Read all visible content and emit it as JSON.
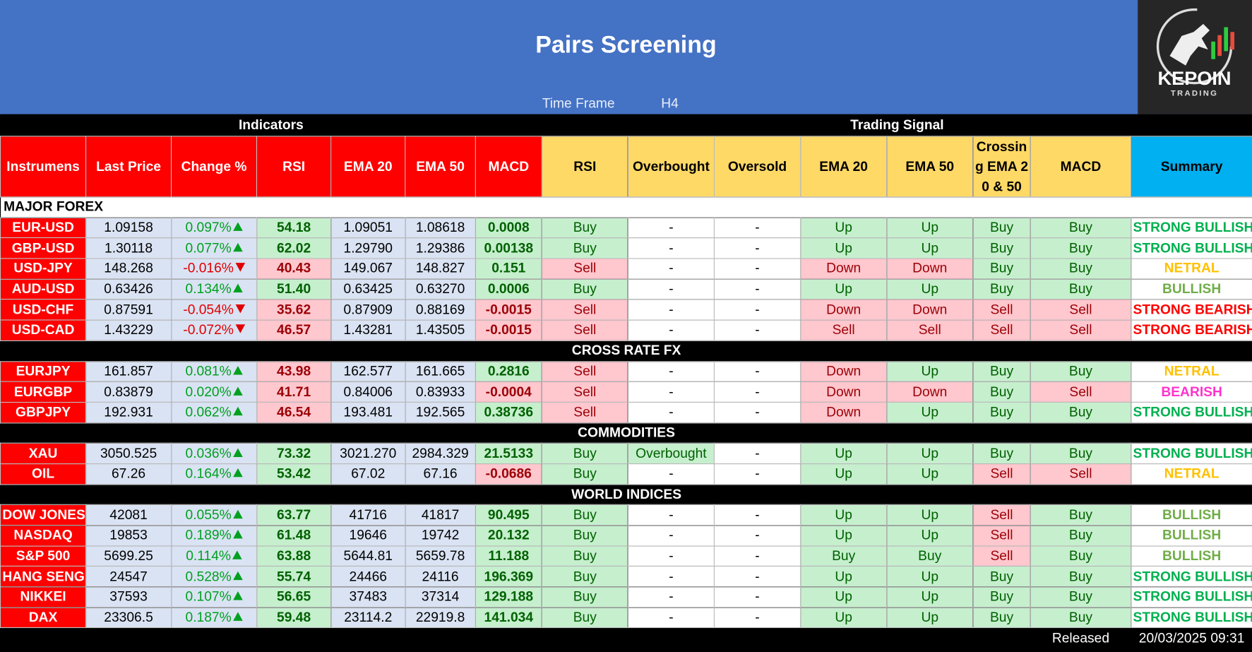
{
  "header": {
    "title": "Pairs Screening",
    "timeframe_label": "Time Frame",
    "timeframe_value": "H4"
  },
  "logo": {
    "name": "KEPOIN",
    "tagline": "TRADING"
  },
  "group_headers": [
    "Indicators",
    "Trading Signal"
  ],
  "columns": [
    "Instrumens",
    "Last Price",
    "Change %",
    "RSI",
    "EMA 20",
    "EMA 50",
    "MACD",
    "RSI",
    "Overbought",
    "Oversold",
    "EMA 20",
    "EMA 50",
    "Crossing EMA 20 & 50",
    "MACD",
    "Summary"
  ],
  "sections": [
    {
      "title": "MAJOR FOREX",
      "rows": [
        [
          "EUR-USD",
          "1.09158",
          "0.097%",
          "54.18",
          "1.09051",
          "1.08618",
          "0.0008",
          "Buy",
          "-",
          "-",
          "Up",
          "Up",
          "Buy",
          "Buy",
          "STRONG BULLISH"
        ],
        [
          "GBP-USD",
          "1.30118",
          "0.077%",
          "62.02",
          "1.29790",
          "1.29386",
          "0.00138",
          "Buy",
          "-",
          "-",
          "Up",
          "Up",
          "Buy",
          "Buy",
          "STRONG BULLISH"
        ],
        [
          "USD-JPY",
          "148.268",
          "-0.016%",
          "40.43",
          "149.067",
          "148.827",
          "0.151",
          "Sell",
          "-",
          "-",
          "Down",
          "Down",
          "Buy",
          "Buy",
          "NETRAL"
        ],
        [
          "AUD-USD",
          "0.63426",
          "0.134%",
          "51.40",
          "0.63425",
          "0.63270",
          "0.0006",
          "Buy",
          "-",
          "-",
          "Up",
          "Up",
          "Buy",
          "Buy",
          "BULLISH"
        ],
        [
          "USD-CHF",
          "0.87591",
          "-0.054%",
          "35.62",
          "0.87909",
          "0.88169",
          "-0.0015",
          "Sell",
          "-",
          "-",
          "Down",
          "Down",
          "Sell",
          "Sell",
          "STRONG BEARISH"
        ],
        [
          "USD-CAD",
          "1.43229",
          "-0.072%",
          "46.57",
          "1.43281",
          "1.43505",
          "-0.0015",
          "Sell",
          "-",
          "-",
          "Sell",
          "Sell",
          "Sell",
          "Sell",
          "STRONG BEARISH"
        ]
      ]
    },
    {
      "title": "CROSS RATE FX",
      "rows": [
        [
          "EURJPY",
          "161.857",
          "0.081%",
          "43.98",
          "162.577",
          "161.665",
          "0.2816",
          "Sell",
          "-",
          "-",
          "Down",
          "Up",
          "Buy",
          "Buy",
          "NETRAL"
        ],
        [
          "EURGBP",
          "0.83879",
          "0.020%",
          "41.71",
          "0.84006",
          "0.83933",
          "-0.0004",
          "Sell",
          "-",
          "-",
          "Down",
          "Down",
          "Buy",
          "Sell",
          "BEARISH"
        ],
        [
          "GBPJPY",
          "192.931",
          "0.062%",
          "46.54",
          "193.481",
          "192.565",
          "0.38736",
          "Sell",
          "-",
          "-",
          "Down",
          "Up",
          "Buy",
          "Buy",
          "STRONG BULLISH"
        ]
      ]
    },
    {
      "title": "COMMODITIES",
      "rows": [
        [
          "XAU",
          "3050.525",
          "0.036%",
          "73.32",
          "3021.270",
          "2984.329",
          "21.5133",
          "Buy",
          "Overbought",
          "-",
          "Up",
          "Up",
          "Buy",
          "Buy",
          "STRONG BULLISH"
        ],
        [
          "OIL",
          "67.26",
          "0.164%",
          "53.42",
          "67.02",
          "67.16",
          "-0.0686",
          "Buy",
          "-",
          "-",
          "Up",
          "Up",
          "Sell",
          "Sell",
          "NETRAL"
        ]
      ]
    },
    {
      "title": "WORLD INDICES",
      "rows": [
        [
          "DOW JONES",
          "42081",
          "0.055%",
          "63.77",
          "41716",
          "41817",
          "90.495",
          "Buy",
          "-",
          "-",
          "Up",
          "Up",
          "Sell",
          "Buy",
          "BULLISH"
        ],
        [
          "NASDAQ",
          "19853",
          "0.189%",
          "61.48",
          "19646",
          "19742",
          "20.132",
          "Buy",
          "-",
          "-",
          "Up",
          "Up",
          "Sell",
          "Buy",
          "BULLISH"
        ],
        [
          "S&P 500",
          "5699.25",
          "0.114%",
          "63.88",
          "5644.81",
          "5659.78",
          "11.188",
          "Buy",
          "-",
          "-",
          "Buy",
          "Buy",
          "Sell",
          "Buy",
          "BULLISH"
        ],
        [
          "HANG SENG",
          "24547",
          "0.528%",
          "55.74",
          "24466",
          "24116",
          "196.369",
          "Buy",
          "-",
          "-",
          "Up",
          "Up",
          "Buy",
          "Buy",
          "STRONG BULLISH"
        ],
        [
          "NIKKEI",
          "37593",
          "0.107%",
          "56.65",
          "37483",
          "37314",
          "129.188",
          "Buy",
          "-",
          "-",
          "Up",
          "Up",
          "Buy",
          "Buy",
          "STRONG BULLISH"
        ],
        [
          "DAX",
          "23306.5",
          "0.187%",
          "59.48",
          "23114.2",
          "22919.8",
          "141.034",
          "Buy",
          "-",
          "-",
          "Up",
          "Up",
          "Buy",
          "Buy",
          "STRONG BULLISH"
        ]
      ]
    }
  ],
  "footer": {
    "label": "Released",
    "value": "20/03/2025 09:31"
  }
}
